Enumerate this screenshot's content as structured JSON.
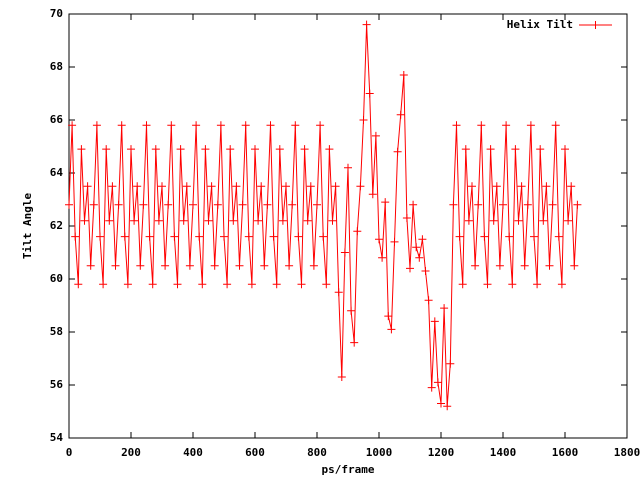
{
  "chart_data": {
    "type": "line",
    "xlabel": "ps/frame",
    "ylabel": "Tilt Angle",
    "xlim": [
      0,
      1800
    ],
    "xticks": [
      0,
      200,
      400,
      600,
      800,
      1000,
      1200,
      1400,
      1600,
      1800
    ],
    "ylim": [
      54,
      70
    ],
    "yticks": [
      54,
      56,
      58,
      60,
      62,
      64,
      66,
      68,
      70
    ],
    "legend": "top-right",
    "x": [
      0,
      10,
      20,
      30,
      40,
      50,
      60,
      70,
      80,
      90,
      100,
      110,
      120,
      130,
      140,
      150,
      160,
      170,
      180,
      190,
      200,
      210,
      220,
      230,
      240,
      250,
      260,
      270,
      280,
      290,
      300,
      310,
      320,
      330,
      340,
      350,
      360,
      370,
      380,
      390,
      400,
      410,
      420,
      430,
      440,
      450,
      460,
      470,
      480,
      490,
      500,
      510,
      520,
      530,
      540,
      550,
      560,
      570,
      580,
      590,
      600,
      610,
      620,
      630,
      640,
      650,
      660,
      670,
      680,
      690,
      700,
      710,
      720,
      730,
      740,
      750,
      760,
      770,
      780,
      790,
      800,
      810,
      820,
      830,
      840,
      850,
      860,
      870,
      880,
      890,
      900,
      910,
      920,
      930,
      940,
      950,
      960,
      970,
      980,
      990,
      1000,
      1010,
      1020,
      1030,
      1040,
      1050,
      1060,
      1070,
      1080,
      1090,
      1100,
      1110,
      1120,
      1130,
      1140,
      1150,
      1160,
      1170,
      1180,
      1190,
      1200,
      1210,
      1220,
      1230,
      1240,
      1250,
      1260,
      1270,
      1280,
      1290,
      1300,
      1310,
      1320,
      1330,
      1340,
      1350,
      1360,
      1370,
      1380,
      1390,
      1400,
      1410,
      1420,
      1430,
      1440,
      1450,
      1460,
      1470,
      1480,
      1490,
      1500,
      1510,
      1520,
      1530,
      1540,
      1550,
      1560,
      1570,
      1580,
      1590,
      1600,
      1610,
      1620,
      1630,
      1640
    ],
    "series": [
      {
        "name": "Helix Tilt",
        "color": "#ff0000",
        "values": [
          62.8,
          65.8,
          61.6,
          59.8,
          64.9,
          62.2,
          63.5,
          60.5,
          62.8,
          65.8,
          61.6,
          59.8,
          64.9,
          62.2,
          63.5,
          60.5,
          62.8,
          65.8,
          61.6,
          59.8,
          64.9,
          62.2,
          63.5,
          60.5,
          62.8,
          65.8,
          61.6,
          59.8,
          64.9,
          62.2,
          63.5,
          60.5,
          62.8,
          65.8,
          61.6,
          59.8,
          64.9,
          62.2,
          63.5,
          60.5,
          62.8,
          65.8,
          61.6,
          59.8,
          64.9,
          62.2,
          63.5,
          60.5,
          62.8,
          65.8,
          61.6,
          59.8,
          64.9,
          62.2,
          63.5,
          60.5,
          62.8,
          65.8,
          61.6,
          59.8,
          64.9,
          62.2,
          63.5,
          60.5,
          62.8,
          65.8,
          61.6,
          59.8,
          64.9,
          62.2,
          63.5,
          60.5,
          62.8,
          65.8,
          61.6,
          59.8,
          64.9,
          62.2,
          63.5,
          60.5,
          62.8,
          65.8,
          61.6,
          59.8,
          64.9,
          62.2,
          63.5,
          59.5,
          56.3,
          61,
          64.2,
          58.8,
          57.6,
          61.8,
          63.5,
          66,
          69.6,
          67,
          63.2,
          65.4,
          61.5,
          60.8,
          62.9,
          58.6,
          58.1,
          61.4,
          64.8,
          66.2,
          67.7,
          62.3,
          60.4,
          62.8,
          61.2,
          60.8,
          61.5,
          60.3,
          59.2,
          55.9,
          58.4,
          56.1,
          55.3,
          58.9,
          55.2,
          56.8,
          62.8,
          65.8,
          61.6,
          59.8,
          64.9,
          62.2,
          63.5,
          60.5,
          62.8,
          65.8,
          61.6,
          59.8,
          64.9,
          62.2,
          63.5,
          60.5,
          62.8,
          65.8,
          61.6,
          59.8,
          64.9,
          62.2,
          63.5,
          60.5,
          62.8,
          65.8,
          61.6,
          59.8,
          64.9,
          62.2,
          63.5,
          60.5,
          62.8,
          65.8,
          61.6,
          59.8,
          64.9,
          62.2,
          63.5,
          60.5,
          62.8
        ]
      }
    ]
  }
}
